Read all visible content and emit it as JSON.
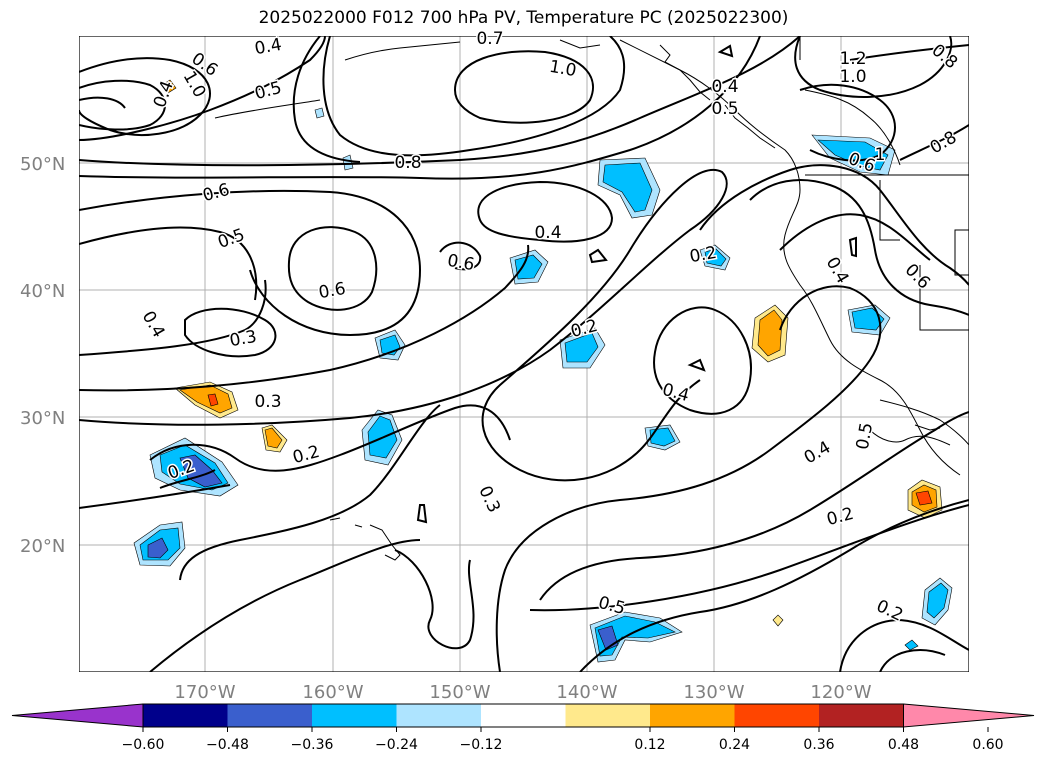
{
  "title": "2025022000 F012 700 hPa PV, Temperature PC (2025022300)",
  "map": {
    "lat_labels": [
      "50°N",
      "40°N",
      "30°N",
      "20°N"
    ],
    "lon_labels": [
      "170°W",
      "160°W",
      "150°W",
      "140°W",
      "130°W",
      "120°W"
    ],
    "contour_labels": [
      "0.4",
      "0.7",
      "1.0",
      "0.6",
      "0.8",
      "1.0",
      "0.5",
      "0.4",
      "0.5",
      "1.2",
      "1.0",
      "0.8",
      "0.8",
      "0.6",
      "1",
      "0.6",
      "0.4",
      "0.5",
      "0.6",
      "0.2",
      "0.6",
      "0.4",
      "0.4",
      "0.3",
      "0.2",
      "0.3",
      "0.4",
      "0.2",
      "0.3",
      "0.4",
      "0.5",
      "0.2",
      "0.5",
      "0.2",
      "0.6",
      "0.2",
      "0.4"
    ]
  },
  "colorbar": {
    "ticks": [
      "−0.60",
      "−0.48",
      "−0.36",
      "−0.24",
      "−0.12",
      "0.12",
      "0.24",
      "0.36",
      "0.48",
      "0.60"
    ],
    "colors": [
      "#9933cc",
      "#00008b",
      "#3a5fcd",
      "#00bfff",
      "#aee4ff",
      "#ffffff",
      "#ffe98c",
      "#ffa500",
      "#ff4500",
      "#b22222",
      "#ff88aa"
    ]
  }
}
